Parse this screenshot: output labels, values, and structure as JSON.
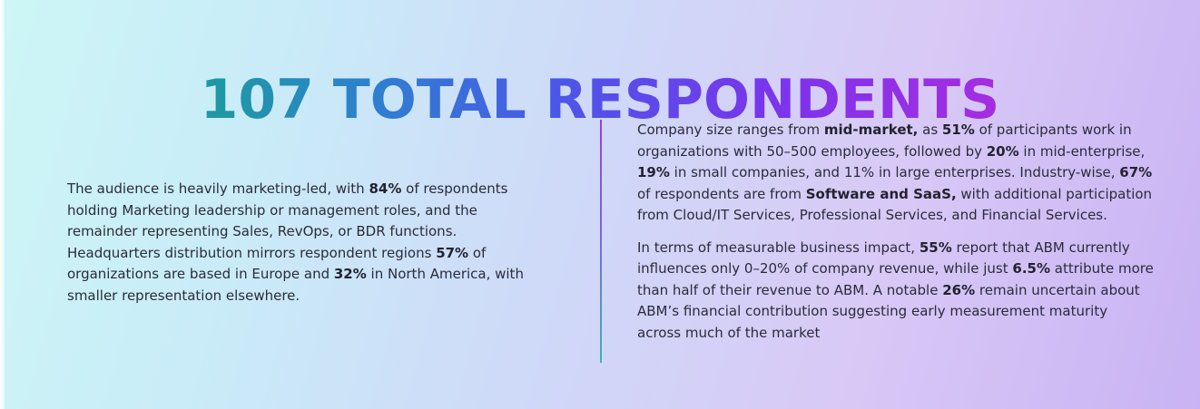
{
  "title": "107 TOTAL RESPONDENTS",
  "left": {
    "p1_t1": "The audience is heavily marketing-led, with ",
    "p1_b1": "84%",
    "p1_t2": " of respondents holding Marketing leadership or management roles, and the remainder representing Sales, RevOps, or BDR functions. Headquarters distribution mirrors respondent regions ",
    "p1_b2": "57%",
    "p1_t3": " of organizations are based in Europe and ",
    "p1_b3": "32%",
    "p1_t4": " in North America, with smaller representation elsewhere."
  },
  "right": {
    "p1_t1": "Company size ranges from ",
    "p1_b1": "mid-market,",
    "p1_t2": " as ",
    "p1_b2": "51%",
    "p1_t3": " of participants work in organizations with 50–500 employees, followed by ",
    "p1_b3": "20%",
    "p1_t4": " in mid-enterprise, ",
    "p1_b4": "19%",
    "p1_t5": " in small companies, and 11% in large enterprises. Industry-wise, ",
    "p1_b5": "67%",
    "p1_t6": " of respondents are from ",
    "p1_b6": "Software and SaaS,",
    "p1_t7": " with additional participation from Cloud/IT Services, Professional Services, and Financial Services.",
    "p2_t1": "In terms of measurable business impact, ",
    "p2_b1": "55%",
    "p2_t2": " report that ABM currently influences only 0–20% of company revenue, while just ",
    "p2_b2": "6.5%",
    "p2_t3": " attribute more than half of their revenue to ABM. A notable ",
    "p2_b3": "26%",
    "p2_t4": " remain uncertain about ABM’s financial contribution suggesting early measurement maturity across much of the market"
  },
  "colors": {
    "title_gradient_start": "#1d9ba0",
    "title_gradient_end": "#a62de0",
    "divider_top": "#9b3fd9",
    "divider_bottom": "#39b5b5",
    "body_text": "#2b2b3a"
  }
}
